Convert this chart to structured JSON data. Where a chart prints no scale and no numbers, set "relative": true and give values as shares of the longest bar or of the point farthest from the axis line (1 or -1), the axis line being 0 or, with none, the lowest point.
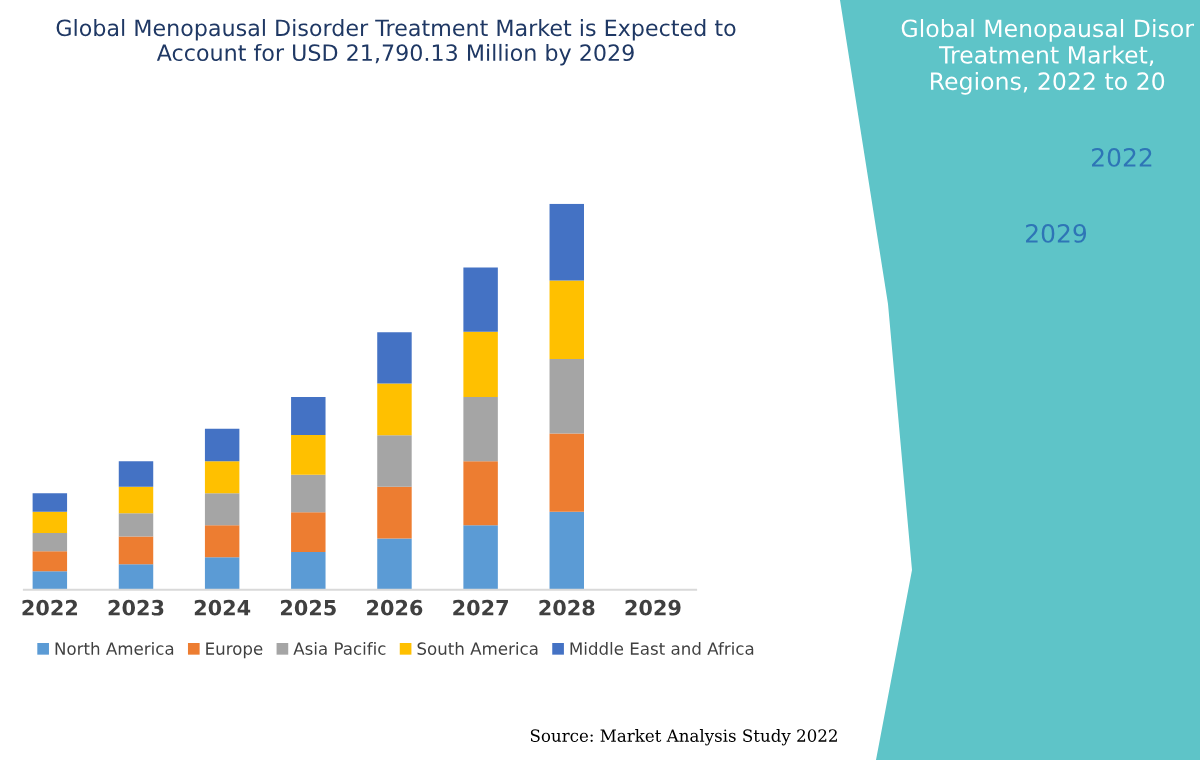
{
  "chart_data": {
    "type": "bar",
    "title": "Global Menopausal Disorder Treatment Market is Expected to\nAccount for USD 21,790.13 Million by 2029",
    "categories": [
      "2022",
      "2023",
      "2024",
      "2025",
      "2026",
      "2027",
      "2028",
      "2029"
    ],
    "stacked": true,
    "relative": true,
    "legend": "bottom",
    "grid": false,
    "series": [
      {
        "name": "North America",
        "color": "#5b9bd5",
        "values": [
          0.048,
          0.066,
          0.084,
          0.098,
          0.133,
          0.167,
          0.202,
          null
        ]
      },
      {
        "name": "Europe",
        "color": "#ed7d31",
        "values": [
          0.052,
          0.072,
          0.083,
          0.103,
          0.134,
          0.166,
          0.203,
          null
        ]
      },
      {
        "name": "Asia Pacific",
        "color": "#a5a5a5",
        "values": [
          0.047,
          0.06,
          0.083,
          0.097,
          0.133,
          0.166,
          0.193,
          null
        ]
      },
      {
        "name": "South America",
        "color": "#ffc000",
        "values": [
          0.055,
          0.069,
          0.083,
          0.103,
          0.134,
          0.169,
          0.203,
          null
        ]
      },
      {
        "name": "Middle East and Africa",
        "color": "#4472c4",
        "values": [
          0.048,
          0.066,
          0.084,
          0.098,
          0.133,
          0.167,
          0.199,
          null
        ]
      }
    ],
    "annotations": [
      "Source: Market Analysis Study 2022",
      "Global Menopausal Disor\nTreatment Market,\nRegions, 2022 to 20",
      "2022",
      "2029"
    ]
  }
}
